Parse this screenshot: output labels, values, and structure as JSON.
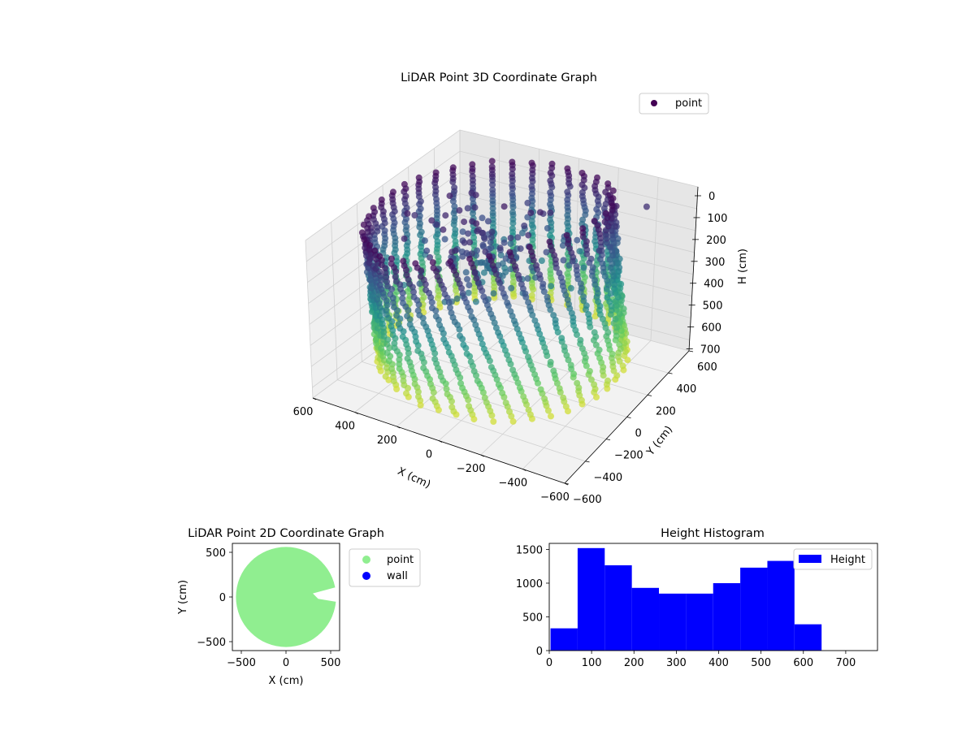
{
  "chart_data": [
    {
      "type": "scatter",
      "title": "LiDAR Point 3D Coordinate Graph",
      "xlabel": "X (cm)",
      "ylabel": "Y (cm)",
      "zlabel": "H (cm)",
      "xlim": [
        -600,
        600
      ],
      "ylim": [
        -600,
        600
      ],
      "zlim": [
        750,
        0
      ],
      "xticks": [
        -600,
        -400,
        -200,
        0,
        200,
        400,
        600
      ],
      "yticks": [
        -600,
        -400,
        -200,
        0,
        200,
        400,
        600
      ],
      "zticks": [
        0,
        100,
        200,
        300,
        400,
        500,
        600,
        700
      ],
      "xtick_labels": [
        "−600",
        "−400",
        "−200",
        "0",
        "200",
        "400",
        "600"
      ],
      "ytick_labels": [
        "−600",
        "−400",
        "−200",
        "0",
        "200",
        "400",
        "600"
      ],
      "ztick_labels": [
        "0",
        "100",
        "200",
        "300",
        "400",
        "500",
        "600",
        "700"
      ],
      "legend": [
        "point"
      ],
      "legend_position": "top-right",
      "colormap": "viridis",
      "grid": true,
      "series": [
        {
          "name": "point",
          "description": "cylindrical wall of scan columns around radius ~540 cm, heights 0-650 cm, colored by height",
          "wall_radius": 540,
          "wall_columns": 40,
          "height_range": [
            20,
            650
          ],
          "outliers": [
            {
              "x": 560,
              "y": 120,
              "h": 120
            },
            {
              "x": 420,
              "y": 520,
              "h": 100
            }
          ]
        }
      ]
    },
    {
      "type": "scatter",
      "title": "LiDAR Point 2D Coordinate Graph",
      "xlabel": "X (cm)",
      "ylabel": "Y (cm)",
      "xlim": [
        -600,
        600
      ],
      "ylim": [
        -600,
        600
      ],
      "xticks": [
        -500,
        0,
        500
      ],
      "yticks": [
        -500,
        0,
        500
      ],
      "xtick_labels": [
        "−500",
        "0",
        "500"
      ],
      "ytick_labels": [
        "−500",
        "0",
        "500"
      ],
      "legend_position": "outside-right",
      "series": [
        {
          "name": "point",
          "color": "#90ee90",
          "shape": "filled disk radius ~560 cm with notch on right side"
        },
        {
          "name": "wall",
          "color": "#0000ff",
          "shape": "none visible"
        }
      ]
    },
    {
      "type": "bar",
      "title": "Height Histogram",
      "xlabel": "",
      "ylabel": "",
      "xlim": [
        0,
        775
      ],
      "ylim": [
        0,
        1590
      ],
      "xticks": [
        0,
        100,
        200,
        300,
        400,
        500,
        600,
        700
      ],
      "yticks": [
        0,
        500,
        1000,
        1500
      ],
      "xtick_labels": [
        "0",
        "100",
        "200",
        "300",
        "400",
        "500",
        "600",
        "700"
      ],
      "ytick_labels": [
        "0",
        "500",
        "1000",
        "1500"
      ],
      "legend": [
        "Height"
      ],
      "legend_position": "top-right",
      "color": "#0000ff",
      "bin_edges": [
        3,
        67,
        131,
        195,
        259,
        323,
        387,
        451,
        515,
        579,
        643
      ],
      "values": [
        330,
        1520,
        1265,
        930,
        845,
        845,
        1000,
        1230,
        1330,
        390
      ]
    }
  ]
}
